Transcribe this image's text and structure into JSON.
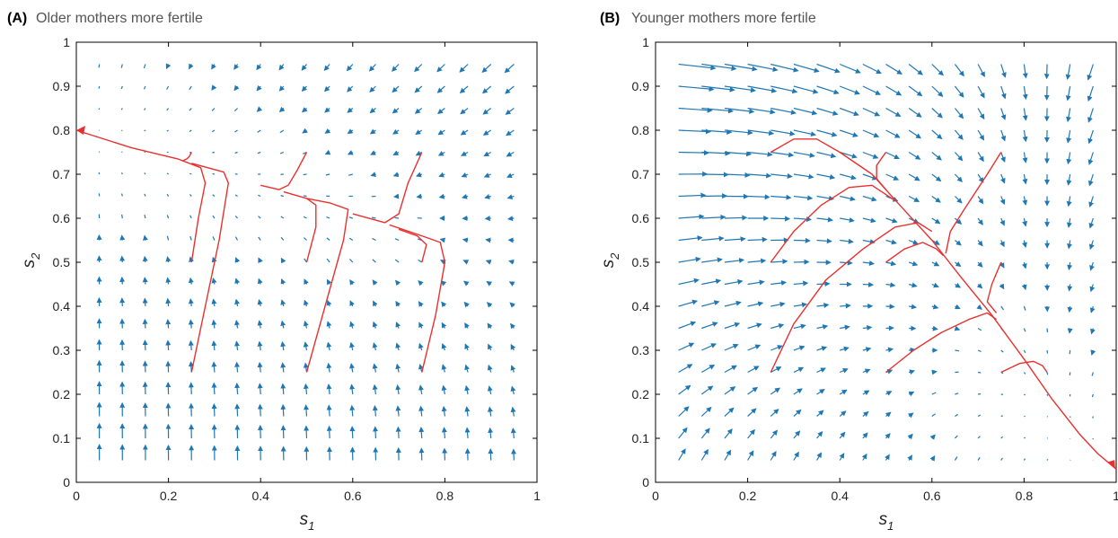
{
  "figure": {
    "colors": {
      "quiver": "#1f78b4",
      "trajectory": "#e8302f",
      "axes": "#000000",
      "title": "#555555"
    }
  },
  "chart_data": [
    {
      "type": "quiver",
      "panel_label": "(A)",
      "title": "Older mothers more fertile",
      "xlabel": "s",
      "xlabel_sub": "1",
      "ylabel": "s",
      "ylabel_sub": "2",
      "xlim": [
        0,
        1
      ],
      "ylim": [
        0,
        1
      ],
      "xticks": [
        "0",
        "0.2",
        "0.4",
        "0.6",
        "0.8",
        "1"
      ],
      "yticks": [
        "0",
        "0.1",
        "0.2",
        "0.3",
        "0.4",
        "0.5",
        "0.6",
        "0.7",
        "0.8",
        "0.9",
        "1"
      ],
      "grid": false,
      "equilibrium": [
        0,
        0.8
      ],
      "trajectories": [
        {
          "start": [
            0.23,
            0.73
          ],
          "points": [
            [
              0.23,
              0.73
            ],
            [
              0.24,
              0.735
            ],
            [
              0.245,
              0.74
            ],
            [
              0.25,
              0.75
            ]
          ]
        },
        {
          "start": [
            0.25,
            0.5
          ],
          "points": [
            [
              0.25,
              0.5
            ],
            [
              0.265,
              0.6
            ],
            [
              0.28,
              0.68
            ],
            [
              0.27,
              0.715
            ],
            [
              0.22,
              0.735
            ],
            [
              0.12,
              0.76
            ],
            [
              0,
              0.8
            ]
          ]
        },
        {
          "start": [
            0.25,
            0.25
          ],
          "points": [
            [
              0.25,
              0.25
            ],
            [
              0.28,
              0.4
            ],
            [
              0.31,
              0.55
            ],
            [
              0.33,
              0.68
            ],
            [
              0.32,
              0.705
            ],
            [
              0.25,
              0.725
            ]
          ]
        },
        {
          "start": [
            0.5,
            0.75
          ],
          "points": [
            [
              0.5,
              0.75
            ],
            [
              0.48,
              0.71
            ],
            [
              0.46,
              0.675
            ],
            [
              0.44,
              0.665
            ],
            [
              0.4,
              0.675
            ]
          ]
        },
        {
          "start": [
            0.5,
            0.5
          ],
          "points": [
            [
              0.5,
              0.5
            ],
            [
              0.52,
              0.58
            ],
            [
              0.52,
              0.63
            ],
            [
              0.5,
              0.645
            ],
            [
              0.45,
              0.66
            ]
          ]
        },
        {
          "start": [
            0.5,
            0.25
          ],
          "points": [
            [
              0.5,
              0.25
            ],
            [
              0.54,
              0.4
            ],
            [
              0.58,
              0.55
            ],
            [
              0.59,
              0.62
            ],
            [
              0.55,
              0.635
            ],
            [
              0.5,
              0.645
            ]
          ]
        },
        {
          "start": [
            0.75,
            0.75
          ],
          "points": [
            [
              0.75,
              0.75
            ],
            [
              0.72,
              0.68
            ],
            [
              0.7,
              0.61
            ],
            [
              0.67,
              0.59
            ],
            [
              0.6,
              0.61
            ]
          ]
        },
        {
          "start": [
            0.75,
            0.5
          ],
          "points": [
            [
              0.75,
              0.5
            ],
            [
              0.76,
              0.54
            ],
            [
              0.74,
              0.56
            ],
            [
              0.7,
              0.575
            ]
          ]
        },
        {
          "start": [
            0.75,
            0.25
          ],
          "points": [
            [
              0.75,
              0.25
            ],
            [
              0.78,
              0.38
            ],
            [
              0.8,
              0.5
            ],
            [
              0.79,
              0.545
            ],
            [
              0.75,
              0.56
            ],
            [
              0.68,
              0.585
            ]
          ]
        }
      ]
    },
    {
      "type": "quiver",
      "panel_label": "(B)",
      "title": "Younger mothers more fertile",
      "xlabel": "s",
      "xlabel_sub": "1",
      "ylabel": "s",
      "ylabel_sub": "2",
      "xlim": [
        0,
        1
      ],
      "ylim": [
        0,
        1
      ],
      "xticks": [
        "0",
        "0.2",
        "0.4",
        "0.6",
        "0.8",
        "1"
      ],
      "yticks": [
        "0",
        "0.1",
        "0.2",
        "0.3",
        "0.4",
        "0.5",
        "0.6",
        "0.7",
        "0.8",
        "0.9",
        "1"
      ],
      "grid": false,
      "equilibrium": [
        1,
        0.03
      ],
      "trajectories": [
        {
          "start": [
            0.25,
            0.75
          ],
          "points": [
            [
              0.25,
              0.75
            ],
            [
              0.3,
              0.78
            ],
            [
              0.35,
              0.78
            ],
            [
              0.4,
              0.75
            ],
            [
              0.47,
              0.7
            ],
            [
              0.53,
              0.63
            ],
            [
              0.6,
              0.55
            ],
            [
              0.66,
              0.47
            ],
            [
              0.73,
              0.38
            ],
            [
              0.8,
              0.28
            ],
            [
              0.86,
              0.19
            ],
            [
              0.92,
              0.11
            ],
            [
              0.96,
              0.065
            ],
            [
              1,
              0.03
            ]
          ]
        },
        {
          "start": [
            0.25,
            0.5
          ],
          "points": [
            [
              0.25,
              0.5
            ],
            [
              0.3,
              0.57
            ],
            [
              0.36,
              0.63
            ],
            [
              0.42,
              0.67
            ],
            [
              0.47,
              0.675
            ],
            [
              0.52,
              0.64
            ]
          ]
        },
        {
          "start": [
            0.25,
            0.25
          ],
          "points": [
            [
              0.25,
              0.25
            ],
            [
              0.3,
              0.36
            ],
            [
              0.37,
              0.46
            ],
            [
              0.45,
              0.53
            ],
            [
              0.52,
              0.58
            ],
            [
              0.57,
              0.59
            ],
            [
              0.6,
              0.57
            ]
          ]
        },
        {
          "start": [
            0.5,
            0.75
          ],
          "points": [
            [
              0.5,
              0.75
            ],
            [
              0.48,
              0.72
            ],
            [
              0.48,
              0.69
            ],
            [
              0.5,
              0.665
            ]
          ]
        },
        {
          "start": [
            0.5,
            0.5
          ],
          "points": [
            [
              0.5,
              0.5
            ],
            [
              0.54,
              0.53
            ],
            [
              0.58,
              0.545
            ],
            [
              0.61,
              0.53
            ],
            [
              0.625,
              0.515
            ]
          ]
        },
        {
          "start": [
            0.5,
            0.25
          ],
          "points": [
            [
              0.5,
              0.25
            ],
            [
              0.56,
              0.3
            ],
            [
              0.62,
              0.34
            ],
            [
              0.68,
              0.37
            ],
            [
              0.72,
              0.385
            ],
            [
              0.74,
              0.37
            ]
          ]
        },
        {
          "start": [
            0.75,
            0.75
          ],
          "points": [
            [
              0.75,
              0.75
            ],
            [
              0.72,
              0.7
            ],
            [
              0.67,
              0.62
            ],
            [
              0.64,
              0.57
            ],
            [
              0.63,
              0.52
            ]
          ]
        },
        {
          "start": [
            0.75,
            0.5
          ],
          "points": [
            [
              0.75,
              0.5
            ],
            [
              0.73,
              0.45
            ],
            [
              0.72,
              0.41
            ],
            [
              0.74,
              0.385
            ]
          ]
        },
        {
          "start": [
            0.75,
            0.25
          ],
          "points": [
            [
              0.75,
              0.25
            ],
            [
              0.79,
              0.27
            ],
            [
              0.82,
              0.275
            ],
            [
              0.84,
              0.265
            ],
            [
              0.85,
              0.25
            ]
          ]
        }
      ]
    }
  ]
}
